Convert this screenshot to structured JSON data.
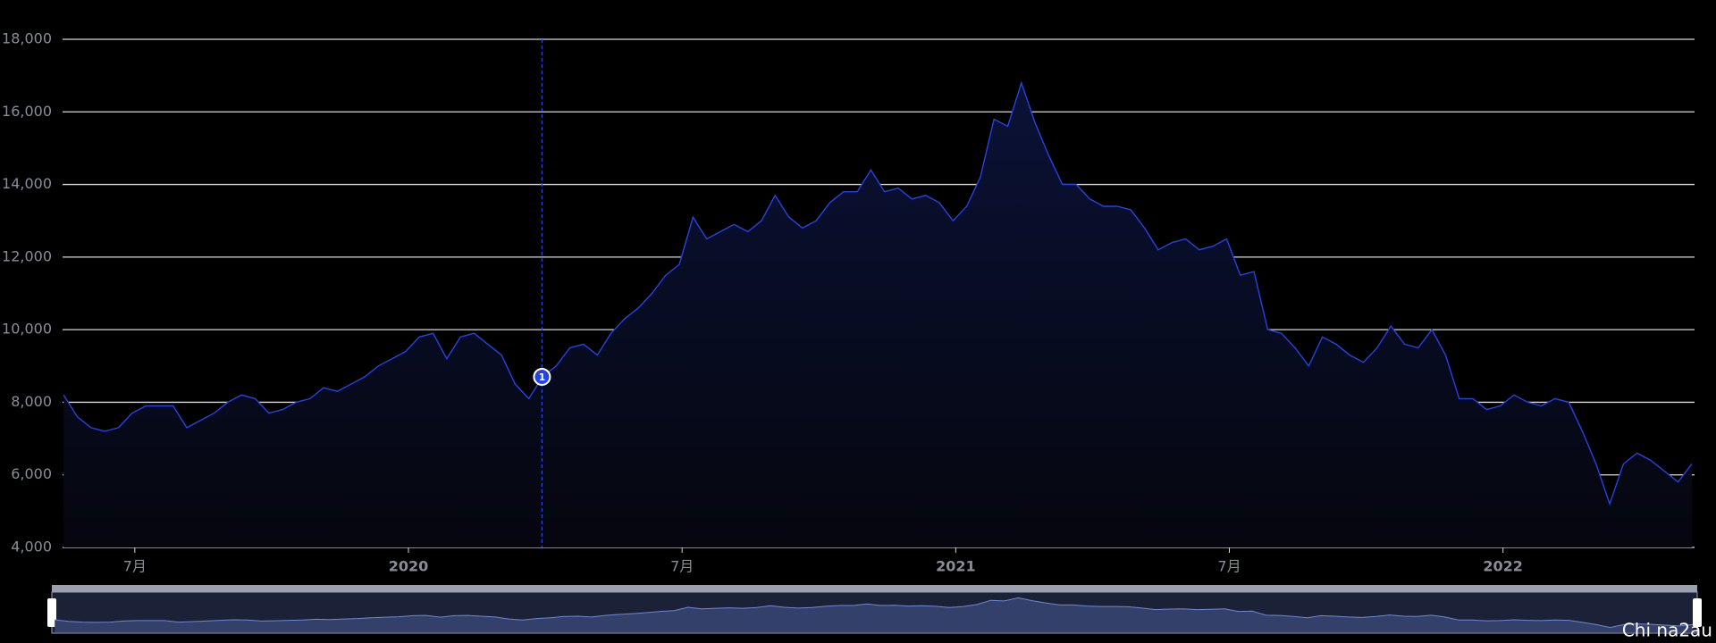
{
  "chart_data": {
    "type": "line",
    "x": [
      2019.37,
      2019.395,
      2019.42,
      2019.445,
      2019.47,
      2019.495,
      2019.52,
      2019.545,
      2019.57,
      2019.595,
      2019.62,
      2019.645,
      2019.67,
      2019.695,
      2019.72,
      2019.745,
      2019.77,
      2019.795,
      2019.82,
      2019.845,
      2019.87,
      2019.895,
      2019.92,
      2019.945,
      2019.97,
      2019.995,
      2020.02,
      2020.045,
      2020.07,
      2020.095,
      2020.12,
      2020.145,
      2020.17,
      2020.195,
      2020.22,
      2020.245,
      2020.27,
      2020.295,
      2020.32,
      2020.345,
      2020.37,
      2020.395,
      2020.42,
      2020.445,
      2020.47,
      2020.495,
      2020.52,
      2020.545,
      2020.57,
      2020.595,
      2020.62,
      2020.645,
      2020.67,
      2020.695,
      2020.72,
      2020.745,
      2020.77,
      2020.795,
      2020.82,
      2020.845,
      2020.87,
      2020.895,
      2020.92,
      2020.945,
      2020.97,
      2020.995,
      2021.02,
      2021.045,
      2021.07,
      2021.095,
      2021.12,
      2021.145,
      2021.17,
      2021.195,
      2021.22,
      2021.245,
      2021.27,
      2021.295,
      2021.32,
      2021.345,
      2021.37,
      2021.395,
      2021.42,
      2021.445,
      2021.47,
      2021.495,
      2021.52,
      2021.545,
      2021.57,
      2021.595,
      2021.62,
      2021.645,
      2021.67,
      2021.695,
      2021.72,
      2021.745,
      2021.77,
      2021.795,
      2021.82,
      2021.845,
      2021.87,
      2021.895,
      2021.92,
      2021.945,
      2021.97,
      2021.995,
      2022.02,
      2022.045,
      2022.07,
      2022.095,
      2022.12,
      2022.145,
      2022.17,
      2022.195,
      2022.22,
      2022.245,
      2022.27,
      2022.295,
      2022.32,
      2022.345
    ],
    "series": [
      {
        "color": "#2443e6",
        "values": [
          8200,
          7600,
          7300,
          7200,
          7300,
          7700,
          7900,
          7900,
          7900,
          7300,
          7500,
          7700,
          8000,
          8200,
          8100,
          7700,
          7800,
          8000,
          8100,
          8400,
          8300,
          8500,
          8700,
          9000,
          9200,
          9400,
          9800,
          9900,
          9200,
          9800,
          9900,
          9600,
          9300,
          8500,
          8100,
          8700,
          9000,
          9500,
          9600,
          9300,
          9900,
          10300,
          10600,
          11000,
          11500,
          11800,
          13100,
          12500,
          12700,
          12900,
          12700,
          13000,
          13700,
          13100,
          12800,
          13000,
          13500,
          13800,
          13800,
          14400,
          13800,
          13900,
          13600,
          13700,
          13500,
          13000,
          13400,
          14200,
          15800,
          15600,
          16800,
          15700,
          14800,
          14000,
          14000,
          13600,
          13400,
          13400,
          13300,
          12800,
          12200,
          12400,
          12500,
          12200,
          12300,
          12500,
          11500,
          11600,
          10000,
          9900,
          9500,
          9000,
          9800,
          9600,
          9300,
          9100,
          9500,
          10100,
          9600,
          9500,
          10000,
          9300,
          8100,
          8100,
          7800,
          7900,
          8200,
          8000,
          7900,
          8100,
          8000,
          7200,
          6300,
          5200,
          6300,
          6600,
          6400,
          6100,
          5800,
          6300
        ]
      }
    ],
    "xlim": [
      2019.368,
      2022.35
    ],
    "xticks": [
      {
        "value": 2019.5,
        "label": "7月"
      },
      {
        "value": 2020,
        "label": "2020"
      },
      {
        "value": 2020.5,
        "label": "7月"
      },
      {
        "value": 2021,
        "label": "2021"
      },
      {
        "value": 2021.5,
        "label": "7月"
      },
      {
        "value": 2022,
        "label": "2022"
      }
    ],
    "ylim": [
      4000,
      18000
    ],
    "yticks": [
      {
        "value": 4000,
        "label": "4,000"
      },
      {
        "value": 6000,
        "label": "6,000"
      },
      {
        "value": 8000,
        "label": "8,000"
      },
      {
        "value": 10000,
        "label": "10,000"
      },
      {
        "value": 12000,
        "label": "12,000"
      },
      {
        "value": 14000,
        "label": "14,000"
      },
      {
        "value": 16000,
        "label": "16,000"
      },
      {
        "value": 18000,
        "label": "18,000"
      }
    ],
    "grid": true,
    "markers": [
      {
        "x": 2020.244,
        "value": 8700,
        "label": "1"
      }
    ],
    "watermark": "Chi na2au"
  }
}
